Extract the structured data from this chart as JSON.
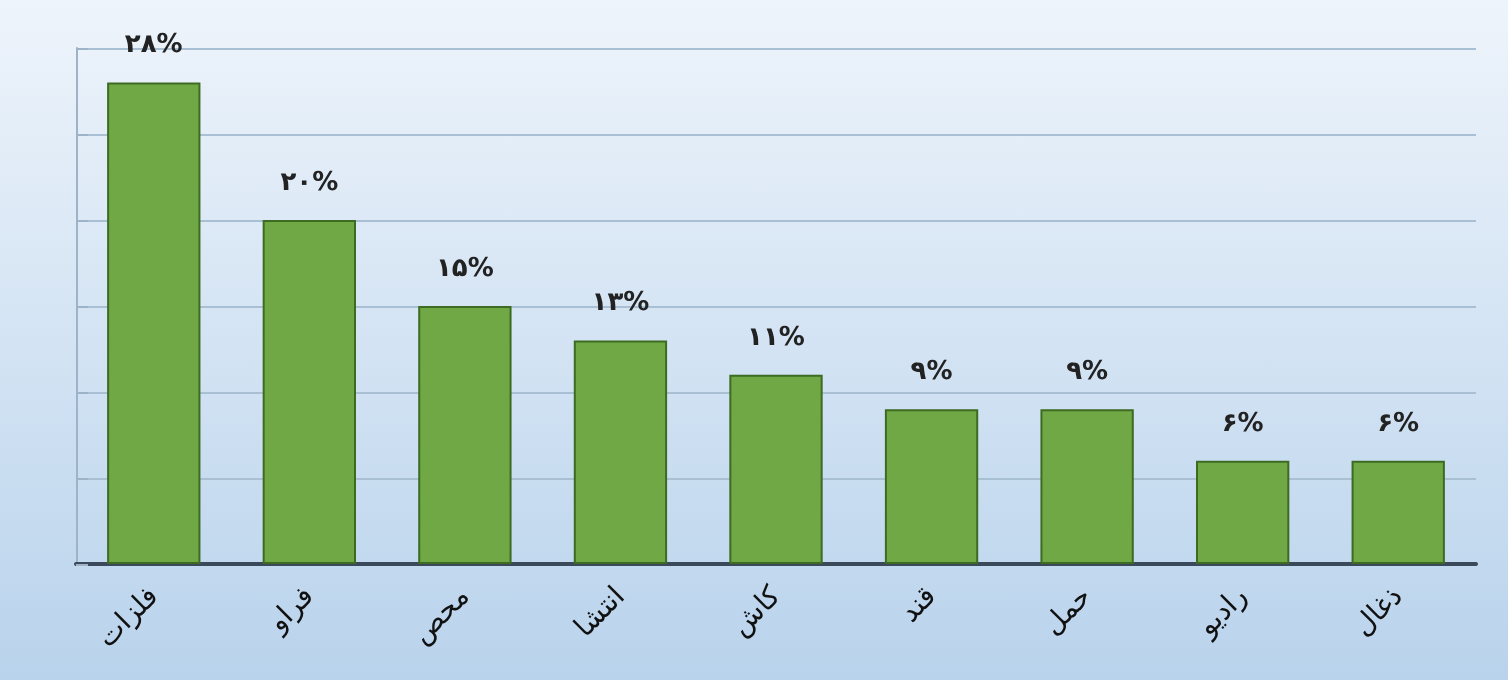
{
  "chart_data": {
    "type": "bar",
    "categories": [
      "فلزات",
      "فراو",
      "محص",
      "انتشا",
      "کاش",
      "قند",
      "حمل",
      "رادیو",
      "ذغال"
    ],
    "values": [
      28,
      20,
      15,
      13,
      11,
      9,
      9,
      6,
      6
    ],
    "value_labels": [
      "۲۸%",
      "۲۰%",
      "۱۵%",
      "۱۳%",
      "۱۱%",
      "۹%",
      "۹%",
      "۶%",
      "۶%"
    ],
    "color": "#70a845",
    "ylim": [
      0,
      30
    ],
    "yticks": [
      {
        "value": 0,
        "label": null
      },
      {
        "value": 5,
        "label": null
      },
      {
        "value": 10,
        "label": null
      },
      {
        "value": 15,
        "label": null
      },
      {
        "value": 20,
        "label": null
      },
      {
        "value": 25,
        "label": null
      },
      {
        "value": 30,
        "label": null
      }
    ],
    "tick_labels": "x",
    "grid": "y"
  }
}
